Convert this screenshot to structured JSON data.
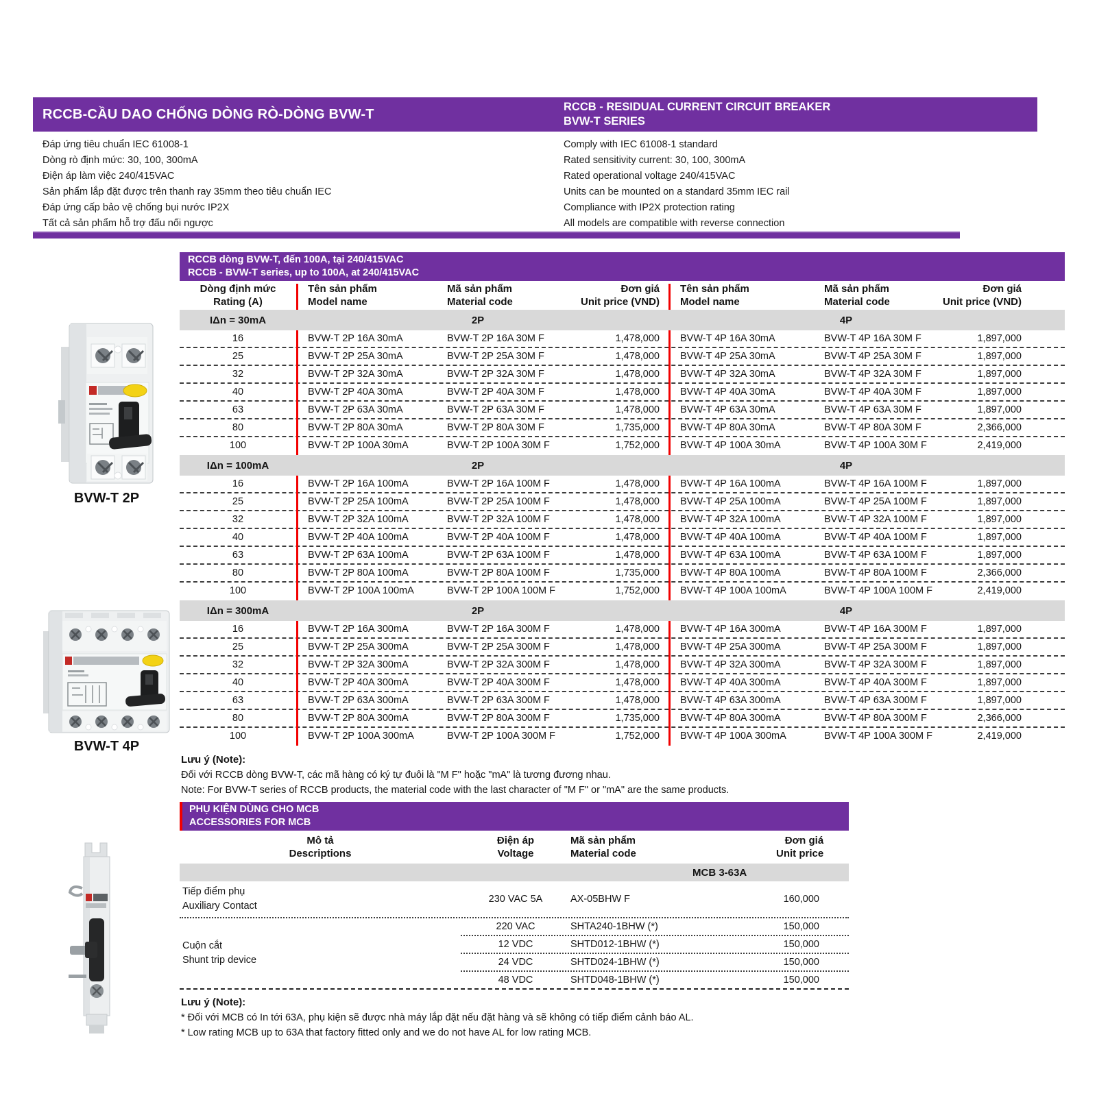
{
  "colors": {
    "accent_purple": "#7030A0",
    "divider_red": "#F20000",
    "section_gray": "#D9D9D9"
  },
  "header": {
    "vi_title": "RCCB-CẦU DAO CHỐNG DÒNG RÒ-DÒNG BVW-T",
    "en_title_line1": "RCCB - RESIDUAL CURRENT CIRCUIT BREAKER",
    "en_title_line2": "BVW-T SERIES"
  },
  "features_vi": [
    "Đáp ứng tiêu chuẩn IEC 61008-1",
    "Dòng rò định mức: 30, 100, 300mA",
    "Điện áp làm việc 240/415VAC",
    "Sản phẩm lắp đặt được trên thanh ray 35mm theo tiêu chuẩn IEC",
    "Đáp ứng cấp bảo vệ chống bụi nước IP2X",
    "Tất cả sản phẩm hỗ trợ đấu nối ngược"
  ],
  "features_en": [
    "Comply with IEC 61008-1 standard",
    "Rated sensitivity current: 30, 100, 300mA",
    "Rated operational voltage 240/415VAC",
    "Units can be mounted on a standard 35mm IEC rail",
    "Compliance with IP2X protection rating",
    "All models are compatible with reverse connection"
  ],
  "products": {
    "p2_label": "BVW-T 2P",
    "p4_label": "BVW-T 4P"
  },
  "main_table": {
    "title_vi": "RCCB dòng BVW-T, đến 100A, tại 240/415VAC",
    "title_en": "RCCB - BVW-T series, up to 100A, at 240/415VAC",
    "headers": {
      "rating_vi": "Dòng định mức",
      "rating_en": "Rating (A)",
      "model_vi": "Tên sản phẩm",
      "model_en": "Model name",
      "code_vi": "Mã sản phẩm",
      "code_en": "Material code",
      "price_vi": "Đơn giá",
      "price_en": "Unit price (VND)"
    },
    "sections": [
      {
        "label": "IΔn = 30mA",
        "group_2p": "2P",
        "group_4p": "4P",
        "rows": [
          [
            "16",
            "BVW-T 2P 16A 30mA",
            "BVW-T 2P 16A 30M F",
            "1,478,000",
            "BVW-T 4P 16A 30mA",
            "BVW-T 4P 16A 30M F",
            "1,897,000"
          ],
          [
            "25",
            "BVW-T 2P 25A 30mA",
            "BVW-T 2P 25A 30M F",
            "1,478,000",
            "BVW-T 4P 25A 30mA",
            "BVW-T 4P 25A 30M F",
            "1,897,000"
          ],
          [
            "32",
            "BVW-T 2P 32A 30mA",
            "BVW-T 2P 32A 30M F",
            "1,478,000",
            "BVW-T 4P 32A 30mA",
            "BVW-T 4P 32A 30M F",
            "1,897,000"
          ],
          [
            "40",
            "BVW-T 2P 40A 30mA",
            "BVW-T 2P 40A 30M F",
            "1,478,000",
            "BVW-T 4P 40A 30mA",
            "BVW-T 4P 40A 30M F",
            "1,897,000"
          ],
          [
            "63",
            "BVW-T 2P 63A 30mA",
            "BVW-T 2P 63A 30M F",
            "1,478,000",
            "BVW-T 4P 63A 30mA",
            "BVW-T 4P 63A 30M F",
            "1,897,000"
          ],
          [
            "80",
            "BVW-T 2P 80A 30mA",
            "BVW-T 2P 80A 30M F",
            "1,735,000",
            "BVW-T 4P 80A 30mA",
            "BVW-T 4P 80A 30M F",
            "2,366,000"
          ],
          [
            "100",
            "BVW-T 2P 100A 30mA",
            "BVW-T 2P 100A 30M F",
            "1,752,000",
            "BVW-T 4P 100A 30mA",
            "BVW-T 4P 100A 30M F",
            "2,419,000"
          ]
        ]
      },
      {
        "label": "IΔn = 100mA",
        "group_2p": "2P",
        "group_4p": "4P",
        "rows": [
          [
            "16",
            "BVW-T 2P 16A 100mA",
            "BVW-T 2P 16A 100M F",
            "1,478,000",
            "BVW-T 4P 16A 100mA",
            "BVW-T 4P 16A 100M F",
            "1,897,000"
          ],
          [
            "25",
            "BVW-T 2P 25A 100mA",
            "BVW-T 2P 25A 100M F",
            "1,478,000",
            "BVW-T 4P 25A 100mA",
            "BVW-T 4P 25A 100M F",
            "1,897,000"
          ],
          [
            "32",
            "BVW-T 2P 32A 100mA",
            "BVW-T 2P 32A 100M F",
            "1,478,000",
            "BVW-T 4P 32A 100mA",
            "BVW-T 4P 32A 100M F",
            "1,897,000"
          ],
          [
            "40",
            "BVW-T 2P 40A 100mA",
            "BVW-T 2P 40A 100M F",
            "1,478,000",
            "BVW-T 4P 40A 100mA",
            "BVW-T 4P 40A 100M F",
            "1,897,000"
          ],
          [
            "63",
            "BVW-T 2P 63A 100mA",
            "BVW-T 2P 63A 100M F",
            "1,478,000",
            "BVW-T 4P 63A 100mA",
            "BVW-T 4P 63A 100M F",
            "1,897,000"
          ],
          [
            "80",
            "BVW-T 2P 80A 100mA",
            "BVW-T 2P 80A 100M F",
            "1,735,000",
            "BVW-T 4P 80A 100mA",
            "BVW-T 4P 80A 100M F",
            "2,366,000"
          ],
          [
            "100",
            "BVW-T 2P 100A 100mA",
            "BVW-T 2P 100A 100M F",
            "1,752,000",
            "BVW-T 4P 100A 100mA",
            "BVW-T 4P 100A 100M F",
            "2,419,000"
          ]
        ]
      },
      {
        "label": "IΔn = 300mA",
        "group_2p": "2P",
        "group_4p": "4P",
        "rows": [
          [
            "16",
            "BVW-T 2P 16A 300mA",
            "BVW-T 2P 16A 300M F",
            "1,478,000",
            "BVW-T 4P 16A 300mA",
            "BVW-T 4P 16A 300M F",
            "1,897,000"
          ],
          [
            "25",
            "BVW-T 2P 25A 300mA",
            "BVW-T 2P 25A 300M F",
            "1,478,000",
            "BVW-T 4P 25A 300mA",
            "BVW-T 4P 25A 300M F",
            "1,897,000"
          ],
          [
            "32",
            "BVW-T 2P 32A 300mA",
            "BVW-T 2P 32A 300M F",
            "1,478,000",
            "BVW-T 4P 32A 300mA",
            "BVW-T 4P 32A 300M F",
            "1,897,000"
          ],
          [
            "40",
            "BVW-T 2P 40A 300mA",
            "BVW-T 2P 40A 300M F",
            "1,478,000",
            "BVW-T 4P 40A 300mA",
            "BVW-T 4P 40A 300M F",
            "1,897,000"
          ],
          [
            "63",
            "BVW-T 2P 63A 300mA",
            "BVW-T 2P 63A 300M F",
            "1,478,000",
            "BVW-T 4P 63A 300mA",
            "BVW-T 4P 63A 300M F",
            "1,897,000"
          ],
          [
            "80",
            "BVW-T 2P 80A 300mA",
            "BVW-T 2P 80A 300M F",
            "1,735,000",
            "BVW-T 4P 80A 300mA",
            "BVW-T 4P 80A 300M F",
            "2,366,000"
          ],
          [
            "100",
            "BVW-T 2P 100A 300mA",
            "BVW-T 2P 100A 300M F",
            "1,752,000",
            "BVW-T 4P 100A 300mA",
            "BVW-T 4P 100A 300M F",
            "2,419,000"
          ]
        ]
      }
    ]
  },
  "note_rccb": {
    "title": "Lưu ý (Note):",
    "line_vi": "Đối với RCCB dòng BVW-T, các mã hàng có ký tự đuôi là \"M F\" hoặc \"mA\" là tương đương nhau.",
    "line_en": "Note: For BVW-T series of RCCB products, the material code with the last character of \"M F\" or \"mA\" are the same products."
  },
  "accessories": {
    "title_vi": "PHỤ KIỆN DÙNG CHO MCB",
    "title_en": "ACCESSORIES FOR MCB",
    "headers": {
      "desc_vi": "Mô tả",
      "desc_en": "Descriptions",
      "volt_vi": "Điện áp",
      "volt_en": "Voltage",
      "code_vi": "Mã sản phẩm",
      "code_en": "Material code",
      "price_vi": "Đơn giá",
      "price_en": "Unit price"
    },
    "section_label": "MCB 3-63A",
    "groups": [
      {
        "label_vi": "Tiếp điểm phụ",
        "label_en": "Auxiliary Contact",
        "rows": [
          {
            "voltage": "230 VAC 5A",
            "code": "AX-05BHW F",
            "price": "160,000"
          }
        ]
      },
      {
        "label_vi": "Cuộn cắt",
        "label_en": "Shunt trip device",
        "rows": [
          {
            "voltage": "220 VAC",
            "code": "SHTA240-1BHW (*)",
            "price": "150,000"
          },
          {
            "voltage": "12 VDC",
            "code": "SHTD012-1BHW (*)",
            "price": "150,000"
          },
          {
            "voltage": "24 VDC",
            "code": "SHTD024-1BHW (*)",
            "price": "150,000"
          },
          {
            "voltage": "48 VDC",
            "code": "SHTD048-1BHW (*)",
            "price": "150,000"
          }
        ]
      }
    ]
  },
  "note_mcb": {
    "title": "Lưu ý (Note):",
    "line_vi": "* Đối với MCB có In tới 63A, phụ kiện sẽ được nhà máy lắp đặt nếu đặt hàng và sẽ không có tiếp điểm cảnh báo AL.",
    "line_en": "* Low rating MCB up to 63A that factory fitted only and we do not have AL for low rating MCB."
  }
}
